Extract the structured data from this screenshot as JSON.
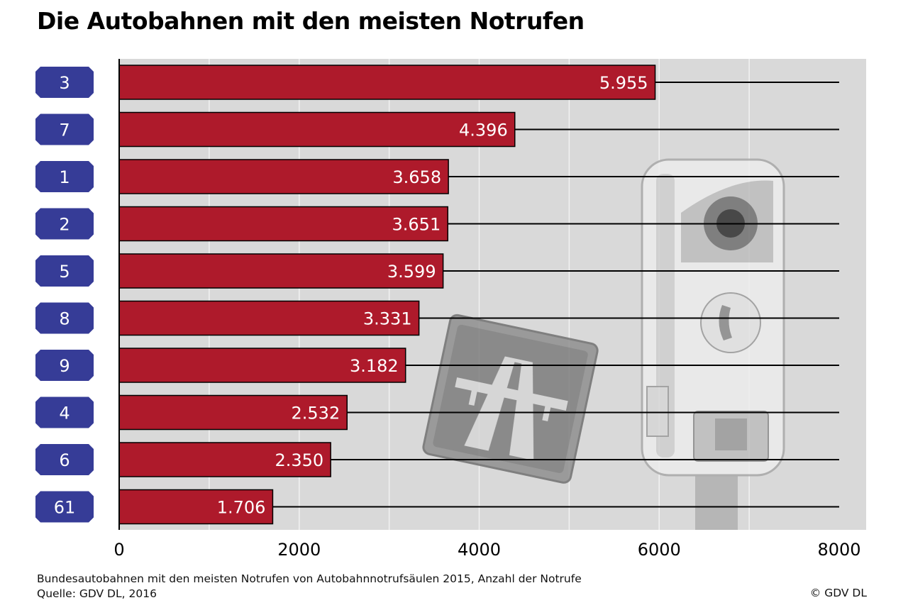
{
  "title": "Die Autobahnen mit den meisten Notrufen",
  "caption": "Bundesautobahnen mit den meisten Notrufen von Autobahnnotrufsäulen 2015, Anzahl der Notrufe",
  "source": "Quelle: GDV DL, 2016",
  "copyright": "© GDV DL",
  "colors": {
    "bar": "#ae1a2b",
    "badge": "#363c97",
    "plot_bg": "#d9d9d9",
    "gridline": "#f2f2f2"
  },
  "chart_data": {
    "type": "bar",
    "orientation": "horizontal",
    "categories": [
      "3",
      "7",
      "1",
      "2",
      "5",
      "8",
      "9",
      "4",
      "6",
      "61"
    ],
    "values": [
      5955,
      4396,
      3658,
      3651,
      3599,
      3331,
      3182,
      2532,
      2350,
      1706
    ],
    "value_labels": [
      "5.955",
      "4.396",
      "3.658",
      "3.651",
      "3.599",
      "3.331",
      "3.182",
      "2.532",
      "2.350",
      "1.706"
    ],
    "xlim": [
      0,
      8000
    ],
    "xticks": [
      0,
      2000,
      4000,
      6000,
      8000
    ],
    "grid": true,
    "xlabel": "",
    "ylabel": ""
  }
}
